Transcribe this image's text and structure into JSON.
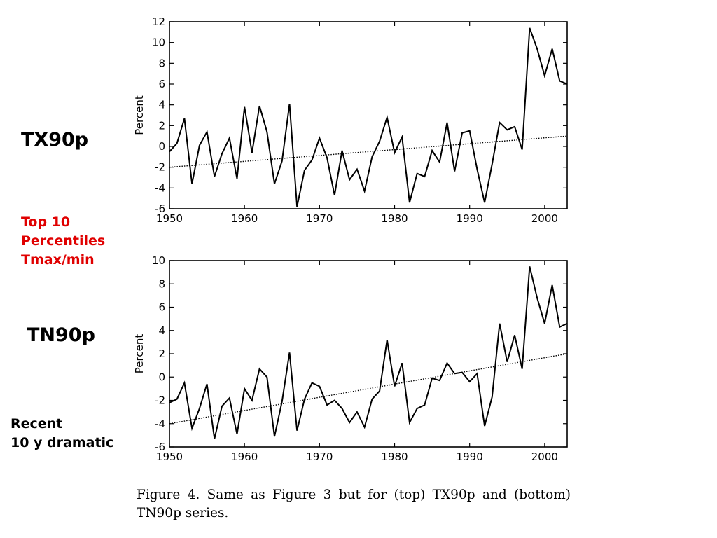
{
  "side_labels": {
    "tx90p": "TX90p",
    "top10_line1": "Top 10",
    "top10_line2": "Percentiles",
    "top10_line3": "Tmax/min",
    "tn90p": "TN90p",
    "recent_line1": "Recent",
    "recent_line2": "10 y dramatic"
  },
  "caption": "Figure 4.  Same as Figure 3 but for (top) TX90p and (bottom) TN90p series.",
  "colors": {
    "highlight": "#e00000",
    "line": "#000000"
  },
  "chart_data": [
    {
      "type": "line",
      "title": "",
      "xlabel": "",
      "ylabel": "Percent",
      "xlim": [
        1950,
        2003
      ],
      "ylim": [
        -6,
        12
      ],
      "xticks": [
        1950,
        1960,
        1970,
        1980,
        1990,
        2000
      ],
      "yticks": [
        -6,
        -4,
        -2,
        0,
        2,
        4,
        6,
        8,
        10,
        12
      ],
      "grid": false,
      "series": [
        {
          "style": "solid",
          "x": [
            1950,
            1951,
            1952,
            1953,
            1954,
            1955,
            1956,
            1957,
            1958,
            1959,
            1960,
            1961,
            1962,
            1963,
            1964,
            1965,
            1966,
            1967,
            1968,
            1969,
            1970,
            1971,
            1972,
            1973,
            1974,
            1975,
            1976,
            1977,
            1978,
            1979,
            1980,
            1981,
            1982,
            1983,
            1984,
            1985,
            1986,
            1987,
            1988,
            1989,
            1990,
            1991,
            1992,
            1993,
            1994,
            1995,
            1996,
            1997,
            1998,
            1999,
            2000,
            2001,
            2002,
            2003
          ],
          "y": [
            -0.5,
            0.3,
            2.7,
            -3.6,
            0.1,
            1.4,
            -2.9,
            -0.7,
            0.8,
            -3.1,
            3.8,
            -0.6,
            3.9,
            1.4,
            -3.6,
            -1.4,
            4.1,
            -5.8,
            -2.3,
            -1.3,
            0.8,
            -1.1,
            -4.7,
            -0.4,
            -3.2,
            -2.2,
            -4.3,
            -1.0,
            0.5,
            2.8,
            -0.6,
            0.9,
            -5.4,
            -2.6,
            -2.9,
            -0.4,
            -1.5,
            2.3,
            -2.4,
            1.3,
            1.5,
            -2.2,
            -5.4,
            -1.7,
            2.3,
            1.6,
            1.9,
            -0.3,
            11.4,
            9.4,
            6.8,
            9.4,
            6.3,
            6.0
          ]
        },
        {
          "style": "dotted",
          "x": [
            1950,
            2003
          ],
          "y": [
            -2.0,
            1.0
          ]
        }
      ]
    },
    {
      "type": "line",
      "title": "",
      "xlabel": "",
      "ylabel": "Percent",
      "xlim": [
        1950,
        2003
      ],
      "ylim": [
        -6,
        10
      ],
      "xticks": [
        1950,
        1960,
        1970,
        1980,
        1990,
        2000
      ],
      "yticks": [
        -6,
        -4,
        -2,
        0,
        2,
        4,
        6,
        8,
        10
      ],
      "grid": false,
      "series": [
        {
          "style": "solid",
          "x": [
            1950,
            1951,
            1952,
            1953,
            1954,
            1955,
            1956,
            1957,
            1958,
            1959,
            1960,
            1961,
            1962,
            1963,
            1964,
            1965,
            1966,
            1967,
            1968,
            1969,
            1970,
            1971,
            1972,
            1973,
            1974,
            1975,
            1976,
            1977,
            1978,
            1979,
            1980,
            1981,
            1982,
            1983,
            1984,
            1985,
            1986,
            1987,
            1988,
            1989,
            1990,
            1991,
            1992,
            1993,
            1994,
            1995,
            1996,
            1997,
            1998,
            1999,
            2000,
            2001,
            2002,
            2003
          ],
          "y": [
            -2.2,
            -1.9,
            -0.5,
            -4.4,
            -2.7,
            -0.6,
            -5.3,
            -2.5,
            -1.8,
            -4.9,
            -1.0,
            -2.0,
            0.7,
            0.0,
            -5.1,
            -2.1,
            2.1,
            -4.6,
            -1.9,
            -0.5,
            -0.8,
            -2.4,
            -2.0,
            -2.7,
            -3.9,
            -3.0,
            -4.3,
            -1.9,
            -1.2,
            3.2,
            -0.8,
            1.2,
            -3.9,
            -2.7,
            -2.4,
            -0.1,
            -0.3,
            1.2,
            0.3,
            0.4,
            -0.4,
            0.3,
            -4.2,
            -1.7,
            4.6,
            1.3,
            3.6,
            0.7,
            9.5,
            6.8,
            4.6,
            7.9,
            4.3,
            4.6
          ]
        },
        {
          "style": "dotted",
          "x": [
            1950,
            2003
          ],
          "y": [
            -4.0,
            2.0
          ]
        }
      ]
    }
  ]
}
